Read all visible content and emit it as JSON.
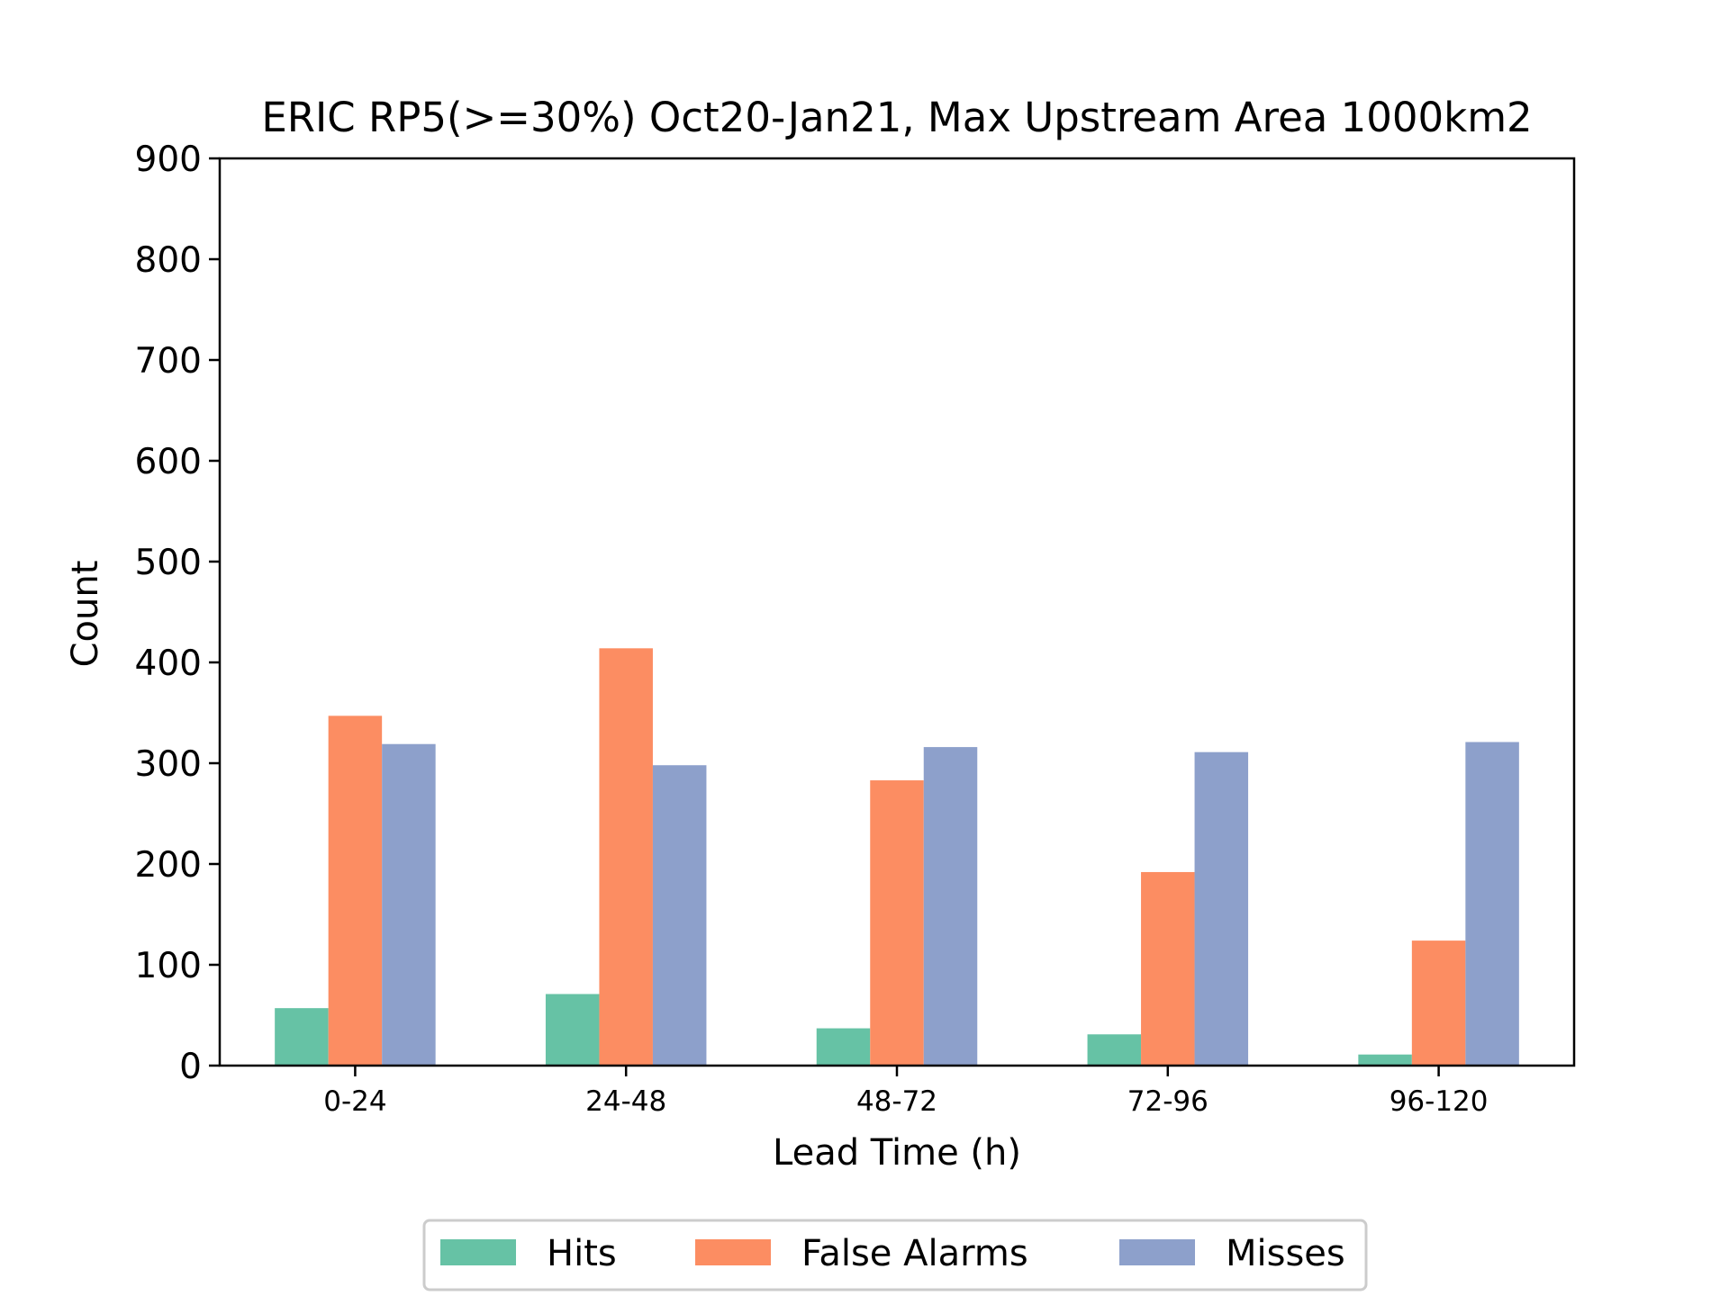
{
  "chart_data": {
    "type": "bar",
    "title": "ERIC RP5(>=30%) Oct20-Jan21, Max Upstream Area 1000km2",
    "xlabel": "Lead Time (h)",
    "ylabel": "Count",
    "ylim": [
      0,
      900
    ],
    "yticks": [
      "0",
      "100",
      "200",
      "300",
      "400",
      "500",
      "600",
      "700",
      "800",
      "900"
    ],
    "categories": [
      "0-24",
      "24-48",
      "48-72",
      "72-96",
      "96-120"
    ],
    "series": [
      {
        "name": "Hits",
        "color": "#66c2a5",
        "values": [
          57,
          71,
          37,
          31,
          11
        ]
      },
      {
        "name": "False Alarms",
        "color": "#fc8d62",
        "values": [
          347,
          414,
          283,
          192,
          124
        ]
      },
      {
        "name": "Misses",
        "color": "#8da0cb",
        "values": [
          319,
          298,
          316,
          311,
          321
        ]
      }
    ],
    "legend_position": "bottom-center",
    "grid": false
  }
}
